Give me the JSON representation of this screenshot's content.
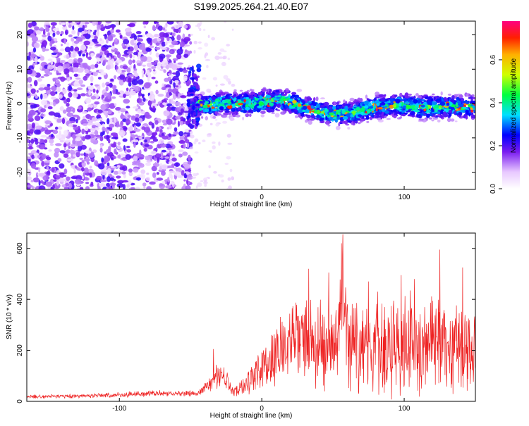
{
  "title": "S199.2025.264.21.40.E07",
  "colors": {
    "line": "#ee2222",
    "axis": "#000000"
  },
  "chart_data": [
    {
      "type": "heatmap",
      "title": "S199.2025.264.21.40.E07",
      "xlabel": "Height of straight line (km)",
      "ylabel": "Frequency (Hz)",
      "xlim": [
        -165,
        150
      ],
      "ylim": [
        -25,
        24
      ],
      "x_ticks": [
        {
          "value": -100,
          "label": "-100"
        },
        {
          "value": 0,
          "label": "0"
        },
        {
          "value": 100,
          "label": "100"
        }
      ],
      "y_ticks": [
        {
          "value": -20,
          "label": "-20"
        },
        {
          "value": -10,
          "label": "-10"
        },
        {
          "value": 0,
          "label": "0"
        },
        {
          "value": 10,
          "label": "10"
        },
        {
          "value": 20,
          "label": "20"
        }
      ],
      "colorbar": {
        "label": "Normalized spectral amplitude",
        "range": [
          0,
          0.78
        ],
        "ticks": [
          {
            "value": 0.0,
            "label": "0.0"
          },
          {
            "value": 0.2,
            "label": "0.2"
          },
          {
            "value": 0.4,
            "label": "0.4"
          },
          {
            "value": 0.6,
            "label": "0.6"
          }
        ]
      },
      "signal_band": {
        "description": "narrow high-amplitude band near 0 Hz",
        "x_start": -50,
        "x_end": 150,
        "center_hz": [
          [
            -50,
            -1
          ],
          [
            -30,
            0
          ],
          [
            -10,
            0
          ],
          [
            0,
            0.5
          ],
          [
            10,
            1
          ],
          [
            20,
            0.5
          ],
          [
            30,
            -1
          ],
          [
            40,
            -2.5
          ],
          [
            50,
            -3
          ],
          [
            60,
            -3
          ],
          [
            70,
            -2
          ],
          [
            80,
            -1
          ],
          [
            90,
            -0.5
          ],
          [
            100,
            -0.5
          ],
          [
            110,
            -1
          ],
          [
            120,
            -1
          ],
          [
            130,
            -1
          ],
          [
            140,
            -1
          ],
          [
            150,
            -1
          ]
        ],
        "peak_amplitude": 0.75
      },
      "noise_region": {
        "description": "broadband low-amplitude noise",
        "x_start": -165,
        "x_end": -50,
        "typical_amplitude": 0.12
      }
    },
    {
      "type": "line",
      "title": "",
      "xlabel": "Height of straight line (km)",
      "ylabel": "SNR (10 * v/v)",
      "xlim": [
        -165,
        150
      ],
      "ylim": [
        0,
        660
      ],
      "x_ticks": [
        {
          "value": -100,
          "label": "-100"
        },
        {
          "value": 0,
          "label": "0"
        },
        {
          "value": 100,
          "label": "100"
        }
      ],
      "y_ticks": [
        {
          "value": 0,
          "label": "0"
        },
        {
          "value": 200,
          "label": "200"
        },
        {
          "value": 400,
          "label": "400"
        },
        {
          "value": 600,
          "label": "600"
        }
      ],
      "series": [
        {
          "name": "SNR",
          "x": [
            -165,
            -140,
            -120,
            -100,
            -80,
            -60,
            -45,
            -35,
            -30,
            -25,
            -20,
            -15,
            -10,
            -5,
            0,
            5,
            10,
            20,
            30,
            40,
            50,
            55,
            57,
            60,
            70,
            80,
            90,
            100,
            110,
            120,
            125,
            130,
            140,
            150
          ],
          "mean": [
            18,
            20,
            22,
            25,
            32,
            30,
            32,
            70,
            110,
            85,
            35,
            55,
            75,
            100,
            150,
            130,
            200,
            210,
            240,
            220,
            230,
            300,
            450,
            280,
            200,
            220,
            180,
            230,
            220,
            210,
            260,
            200,
            220,
            200
          ],
          "amp": [
            10,
            10,
            10,
            12,
            14,
            12,
            14,
            45,
            60,
            50,
            25,
            40,
            60,
            80,
            110,
            100,
            160,
            200,
            230,
            250,
            260,
            230,
            200,
            260,
            200,
            240,
            230,
            250,
            230,
            250,
            250,
            240,
            250,
            240
          ],
          "peaks": [
            {
              "x": 57,
              "y": 655
            },
            {
              "x": 56,
              "y": 620
            },
            {
              "x": 33,
              "y": 520
            },
            {
              "x": 47,
              "y": 505
            },
            {
              "x": 125,
              "y": 595
            },
            {
              "x": 98,
              "y": 495
            },
            {
              "x": 107,
              "y": 480
            },
            {
              "x": 75,
              "y": 470
            },
            {
              "x": 141,
              "y": 525
            },
            {
              "x": -34,
              "y": 205
            }
          ]
        }
      ]
    }
  ]
}
